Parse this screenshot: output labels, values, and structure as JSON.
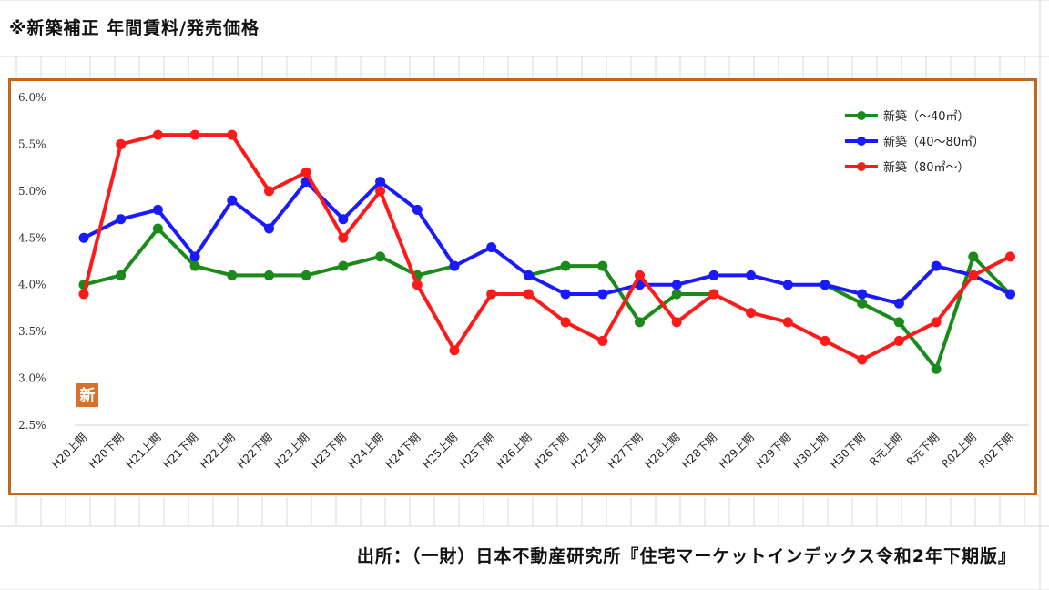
{
  "header": {
    "title": "※新築補正 年間賃料/発売価格"
  },
  "source": {
    "text": "出所：（一財）日本不動産研究所『住宅マーケットインデックス令和2年下期版』"
  },
  "badge": {
    "text": "新",
    "color": "#d9712b"
  },
  "colors": {
    "frame": "#c5671a",
    "grid": "#d9d9d9"
  },
  "chart_data": {
    "type": "line",
    "categories": [
      "H20上期",
      "H20下期",
      "H21上期",
      "H21下期",
      "H22上期",
      "H22下期",
      "H23上期",
      "H23下期",
      "H24上期",
      "H24下期",
      "H25上期",
      "H25下期",
      "H26上期",
      "H26下期",
      "H27上期",
      "H27下期",
      "H28上期",
      "H28下期",
      "H29上期",
      "H29下期",
      "H30上期",
      "H30下期",
      "R元上期",
      "R元下期",
      "R02上期",
      "R02下期"
    ],
    "ylim": [
      2.5,
      6.0
    ],
    "yticks": [
      "2.5%",
      "3.0%",
      "3.5%",
      "4.0%",
      "4.5%",
      "5.0%",
      "5.5%",
      "6.0%"
    ],
    "title": "",
    "xlabel": "",
    "ylabel": "",
    "legend_position": "top-right",
    "series": [
      {
        "name": "新築（～40㎡）",
        "color": "#1a8a1a",
        "values": [
          4.0,
          4.1,
          4.6,
          4.2,
          4.1,
          4.1,
          4.1,
          4.2,
          4.3,
          4.1,
          4.2,
          null,
          4.1,
          4.2,
          4.2,
          3.6,
          3.9,
          3.9,
          null,
          null,
          4.0,
          3.8,
          3.6,
          3.1,
          4.3,
          3.9
        ]
      },
      {
        "name": "新築（40～80㎡）",
        "color": "#1a1aff",
        "values": [
          4.5,
          4.7,
          4.8,
          4.3,
          4.9,
          4.6,
          5.1,
          4.7,
          5.1,
          4.8,
          4.2,
          4.4,
          4.1,
          3.9,
          3.9,
          4.0,
          4.0,
          4.1,
          4.1,
          4.0,
          4.0,
          3.9,
          3.8,
          4.2,
          4.1,
          3.9
        ]
      },
      {
        "name": "新築（80㎡～）",
        "color": "#ff1a1a",
        "values": [
          3.9,
          5.5,
          5.6,
          5.6,
          5.6,
          5.0,
          5.2,
          4.5,
          5.0,
          4.0,
          3.3,
          3.9,
          3.9,
          3.6,
          3.4,
          4.1,
          3.6,
          3.9,
          3.7,
          3.6,
          3.4,
          3.2,
          3.4,
          3.6,
          4.1,
          4.3
        ]
      }
    ]
  }
}
